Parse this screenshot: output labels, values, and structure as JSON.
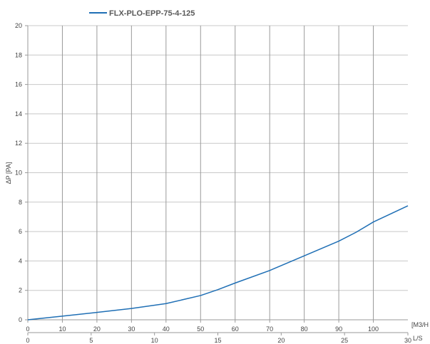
{
  "chart_data": {
    "type": "line",
    "title": "",
    "ylabel": "ΔP [PA]",
    "ylim": [
      0,
      20
    ],
    "y_ticks": [
      0,
      2,
      4,
      6,
      8,
      10,
      12,
      14,
      16,
      18,
      20
    ],
    "x_primary": {
      "label": "[M3/H",
      "range": [
        0,
        110
      ],
      "ticks": [
        0,
        10,
        20,
        30,
        40,
        50,
        60,
        70,
        80,
        90,
        100
      ]
    },
    "x_secondary": {
      "label": "L/S",
      "range": [
        0,
        30
      ],
      "ticks": [
        0,
        5,
        10,
        15,
        20,
        25,
        30
      ]
    },
    "grid": true,
    "legend_position": "top-left",
    "series": [
      {
        "name": "FLX-PLO-EPP-75-4-125",
        "color": "#1f6fb5",
        "x": [
          0,
          10,
          20,
          30,
          40,
          50,
          55,
          60,
          70,
          80,
          90,
          95,
          100,
          110
        ],
        "y": [
          0,
          0.25,
          0.5,
          0.77,
          1.1,
          1.65,
          2.05,
          2.5,
          3.35,
          4.35,
          5.35,
          5.95,
          6.65,
          7.75
        ]
      }
    ]
  }
}
